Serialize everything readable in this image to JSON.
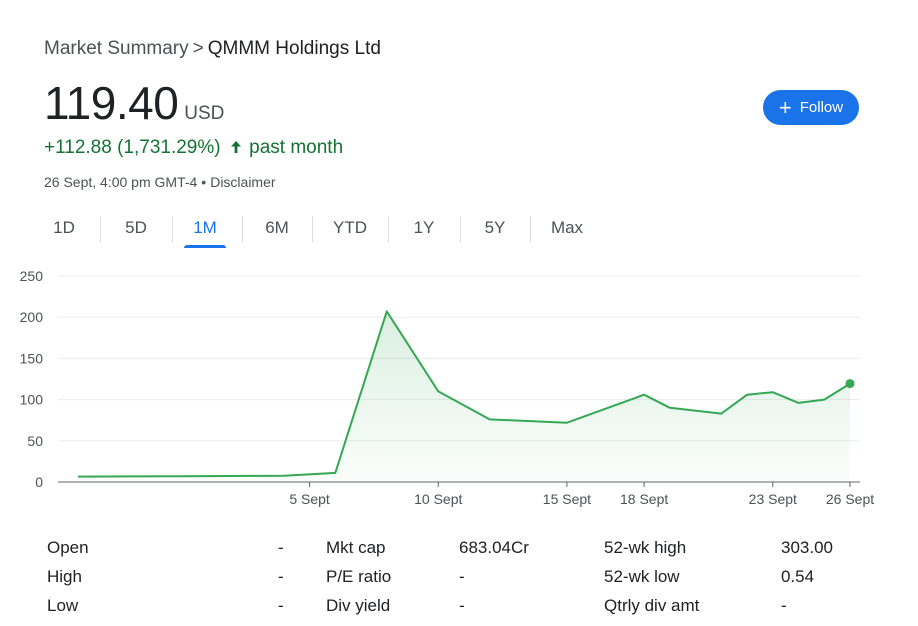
{
  "breadcrumb": {
    "root": "Market Summary",
    "separator": ">",
    "company": "QMMM Holdings Ltd"
  },
  "quote": {
    "price": "119.40",
    "currency": "USD",
    "change": "+112.88 (1,731.29%)",
    "period": "past month",
    "timestamp": "26 Sept, 4:00 pm GMT-4",
    "separator": "•",
    "disclaimer": "Disclaimer"
  },
  "follow_button": {
    "label": "Follow",
    "icon": "plus-icon"
  },
  "tabs": [
    {
      "label": "1D",
      "active": false
    },
    {
      "label": "5D",
      "active": false
    },
    {
      "label": "1M",
      "active": true
    },
    {
      "label": "6M",
      "active": false
    },
    {
      "label": "YTD",
      "active": false
    },
    {
      "label": "1Y",
      "active": false
    },
    {
      "label": "5Y",
      "active": false
    },
    {
      "label": "Max",
      "active": false
    }
  ],
  "colors": {
    "positive": "#137333",
    "line": "#34a853",
    "accent": "#1a73e8"
  },
  "chart_data": {
    "type": "area",
    "ylim": [
      0,
      250
    ],
    "yticks": [
      0,
      50,
      100,
      150,
      200,
      250
    ],
    "xlim": [
      "2024-08-27",
      "2024-09-26"
    ],
    "xticks": [
      {
        "date": "2024-09-05",
        "label": "5 Sept"
      },
      {
        "date": "2024-09-10",
        "label": "10 Sept"
      },
      {
        "date": "2024-09-15",
        "label": "15 Sept"
      },
      {
        "date": "2024-09-18",
        "label": "18 Sept"
      },
      {
        "date": "2024-09-23",
        "label": "23 Sept"
      },
      {
        "date": "2024-09-26",
        "label": "26 Sept"
      }
    ],
    "grid": true,
    "series": [
      {
        "x": [
          "2024-08-27",
          "2024-08-28",
          "2024-08-29",
          "2024-08-30",
          "2024-09-03",
          "2024-09-04",
          "2024-09-05",
          "2024-09-06",
          "2024-09-09",
          "2024-09-10",
          "2024-09-11",
          "2024-09-12",
          "2024-09-13",
          "2024-09-16",
          "2024-09-17",
          "2024-09-18",
          "2024-09-19",
          "2024-09-20",
          "2024-09-23",
          "2024-09-24",
          "2024-09-25",
          "2024-09-26"
        ],
        "values": [
          6.5,
          7,
          7,
          7,
          7.5,
          11,
          207,
          110,
          76,
          74,
          72,
          90,
          106,
          90,
          83,
          106,
          109,
          96,
          100,
          119.4,
          119.4,
          119.4
        ]
      }
    ]
  },
  "chart_series": [
    {
      "date": "2024-08-27",
      "value": 6.5
    },
    {
      "date": "2024-08-31",
      "value": 7
    },
    {
      "date": "2024-09-04",
      "value": 7.5
    },
    {
      "date": "2024-09-06",
      "value": 11
    },
    {
      "date": "2024-09-08",
      "value": 207
    },
    {
      "date": "2024-09-10",
      "value": 110
    },
    {
      "date": "2024-09-12",
      "value": 76
    },
    {
      "date": "2024-09-15",
      "value": 72
    },
    {
      "date": "2024-09-18",
      "value": 106
    },
    {
      "date": "2024-09-19",
      "value": 90
    },
    {
      "date": "2024-09-21",
      "value": 83
    },
    {
      "date": "2024-09-22",
      "value": 106
    },
    {
      "date": "2024-09-23",
      "value": 109
    },
    {
      "date": "2024-09-24",
      "value": 96
    },
    {
      "date": "2024-09-25",
      "value": 100
    },
    {
      "date": "2024-09-26",
      "value": 119.4
    }
  ],
  "stats": [
    [
      {
        "label": "Open",
        "value": "-"
      },
      {
        "label": "High",
        "value": "-"
      },
      {
        "label": "Low",
        "value": "-"
      }
    ],
    [
      {
        "label": "Mkt cap",
        "value": "683.04Cr"
      },
      {
        "label": "P/E ratio",
        "value": "-"
      },
      {
        "label": "Div yield",
        "value": "-"
      }
    ],
    [
      {
        "label": "52-wk high",
        "value": "303.00"
      },
      {
        "label": "52-wk low",
        "value": "0.54"
      },
      {
        "label": "Qtrly div amt",
        "value": "-"
      }
    ]
  ]
}
